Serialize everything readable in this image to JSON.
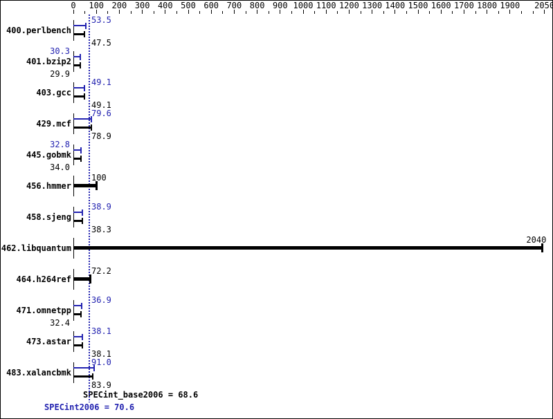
{
  "chart_data": {
    "type": "bar",
    "orientation": "horizontal",
    "xlim": [
      0,
      2050
    ],
    "minor_tick_step": 50,
    "axis_tick_labels": [
      "0",
      "100",
      "200",
      "300",
      "400",
      "500",
      "600",
      "700",
      "800",
      "900",
      "1000",
      "1100",
      "1200",
      "1300",
      "1400",
      "1500",
      "1600",
      "1700",
      "1800",
      "1900",
      "2050"
    ],
    "benchmarks": [
      {
        "name": "400.perlbench",
        "peak": "53.5",
        "base": "47.5"
      },
      {
        "name": "401.bzip2",
        "peak": "30.3",
        "base": "29.9"
      },
      {
        "name": "403.gcc",
        "peak": "49.1",
        "base": "49.1"
      },
      {
        "name": "429.mcf",
        "peak": "79.6",
        "base": "78.9"
      },
      {
        "name": "445.gobmk",
        "peak": "32.8",
        "base": "34.0"
      },
      {
        "name": "456.hmmer",
        "single": "100"
      },
      {
        "name": "458.sjeng",
        "peak": "38.9",
        "base": "38.3"
      },
      {
        "name": "462.libquantum",
        "single": "2040"
      },
      {
        "name": "464.h264ref",
        "single": "72.2"
      },
      {
        "name": "471.omnetpp",
        "peak": "36.9",
        "base": "32.4"
      },
      {
        "name": "473.astar",
        "peak": "38.1",
        "base": "38.1"
      },
      {
        "name": "483.xalancbmk",
        "peak": "91.0",
        "base": "83.9"
      }
    ],
    "reference_line_value": 70.6,
    "summary": {
      "base_text": "SPECint_base2006 = 68.6",
      "peak_text": "SPECint2006 = 70.6",
      "base_value": 68.6,
      "peak_value": 70.6
    },
    "colors": {
      "peak": "#2222b0",
      "base": "#000000",
      "reference_line": "#2222b0"
    }
  }
}
